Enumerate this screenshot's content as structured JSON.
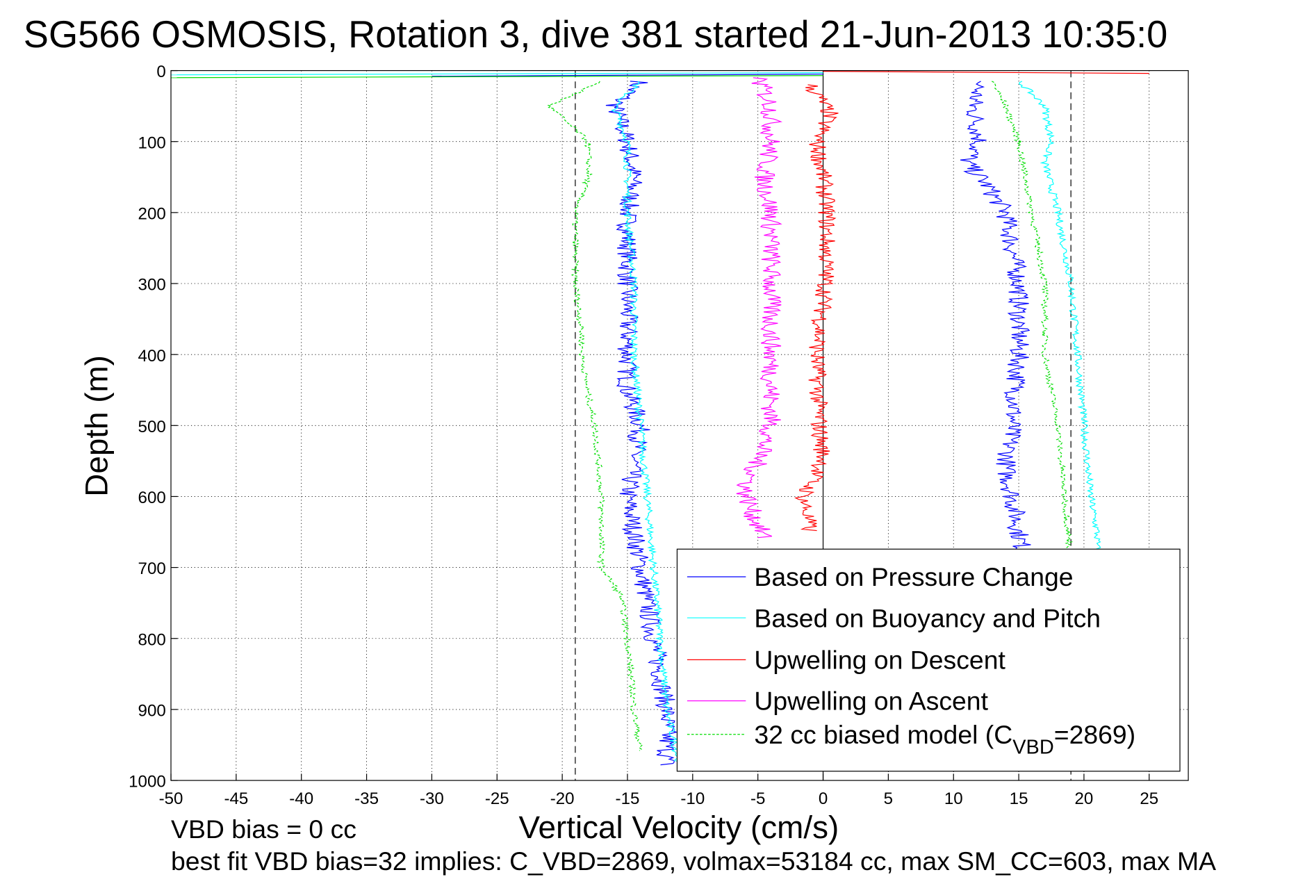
{
  "chart_data": {
    "type": "line",
    "title": "SG566 OSMOSIS, Rotation 3, dive 381 started 21-Jun-2013 10:35:0",
    "xlabel": "Vertical Velocity (cm/s)",
    "ylabel": "Depth (m)",
    "xlim": [
      -50,
      28
    ],
    "ylim": [
      0,
      1000
    ],
    "y_reversed": true,
    "grid": true,
    "xticks": [
      -50,
      -45,
      -40,
      -35,
      -30,
      -25,
      -20,
      -15,
      -10,
      -5,
      0,
      5,
      10,
      15,
      20,
      25
    ],
    "yticks": [
      0,
      100,
      200,
      300,
      400,
      500,
      600,
      700,
      800,
      900,
      1000
    ],
    "reference_lines": [
      {
        "x": -19,
        "style": "dashed",
        "color": "#000000"
      },
      {
        "x": 19,
        "style": "dashed",
        "color": "#000000"
      },
      {
        "x": 0,
        "style": "solid",
        "color": "#000000"
      }
    ],
    "legend": {
      "placement": "bottom-right"
    },
    "series": [
      {
        "name": "Based on Pressure Change",
        "legend_label": "Based on Pressure Change",
        "color": "#0000ff",
        "style": "solid",
        "noise": 0.8,
        "branches": [
          [
            [
              15,
              -14
            ],
            [
              50,
              -16
            ],
            [
              100,
              -15
            ],
            [
              150,
              -14.5
            ],
            [
              200,
              -15
            ],
            [
              250,
              -15
            ],
            [
              300,
              -15
            ],
            [
              400,
              -15
            ],
            [
              450,
              -15
            ],
            [
              500,
              -14
            ],
            [
              600,
              -15
            ],
            [
              650,
              -14.5
            ],
            [
              700,
              -14
            ],
            [
              800,
              -13
            ],
            [
              900,
              -12
            ],
            [
              980,
              -12
            ]
          ],
          [
            [
              15,
              12
            ],
            [
              50,
              11.5
            ],
            [
              100,
              12
            ],
            [
              130,
              11
            ],
            [
              160,
              12.5
            ],
            [
              200,
              14
            ],
            [
              300,
              15
            ],
            [
              400,
              15
            ],
            [
              500,
              14.5
            ],
            [
              560,
              14
            ],
            [
              600,
              14.5
            ],
            [
              650,
              15
            ],
            [
              690,
              15.5
            ]
          ]
        ]
      },
      {
        "name": "Based on Buoyancy and Pitch",
        "legend_label": "Based on Buoyancy and Pitch",
        "color": "#00ffff",
        "style": "solid",
        "noise": 0.3,
        "branches": [
          [
            [
              15,
              -14
            ],
            [
              50,
              -16
            ],
            [
              100,
              -15
            ],
            [
              200,
              -15
            ],
            [
              300,
              -14.5
            ],
            [
              400,
              -14.5
            ],
            [
              500,
              -14
            ],
            [
              600,
              -13.5
            ],
            [
              700,
              -13
            ],
            [
              800,
              -12.5
            ],
            [
              900,
              -12
            ],
            [
              980,
              -11
            ]
          ],
          [
            [
              15,
              15
            ],
            [
              50,
              17
            ],
            [
              100,
              17.5
            ],
            [
              130,
              17
            ],
            [
              200,
              18
            ],
            [
              300,
              19
            ],
            [
              400,
              19.5
            ],
            [
              500,
              20
            ],
            [
              600,
              20.5
            ],
            [
              650,
              21
            ],
            [
              690,
              21
            ]
          ]
        ]
      },
      {
        "name": "Upwelling on Descent",
        "legend_label": "Upwelling on Descent",
        "color": "#ff0000",
        "style": "solid",
        "noise": 0.7,
        "branches": [
          [
            [
              20,
              -1
            ],
            [
              60,
              0.5
            ],
            [
              100,
              -0.5
            ],
            [
              150,
              0
            ],
            [
              200,
              0.3
            ],
            [
              300,
              0.2
            ],
            [
              400,
              -0.5
            ],
            [
              500,
              -0.3
            ],
            [
              550,
              0
            ],
            [
              600,
              -1.5
            ],
            [
              650,
              -1
            ]
          ]
        ]
      },
      {
        "name": "Upwelling on Ascent",
        "legend_label": "Upwelling on Ascent",
        "color": "#ff00ff",
        "style": "solid",
        "noise": 0.8,
        "branches": [
          [
            [
              10,
              -5
            ],
            [
              50,
              -4
            ],
            [
              100,
              -4
            ],
            [
              150,
              -4.5
            ],
            [
              200,
              -4
            ],
            [
              300,
              -4
            ],
            [
              400,
              -4
            ],
            [
              500,
              -4
            ],
            [
              550,
              -5
            ],
            [
              590,
              -6
            ],
            [
              620,
              -5.5
            ],
            [
              660,
              -4.5
            ]
          ]
        ]
      },
      {
        "name": "32 cc biased model",
        "legend_label": "32 cc biased model (C",
        "legend_sub": "VBD",
        "legend_tail": "=2869)",
        "color": "#00dd00",
        "style": "dashed",
        "noise": 0.25,
        "branches": [
          [
            [
              15,
              -17
            ],
            [
              50,
              -21
            ],
            [
              100,
              -18
            ],
            [
              150,
              -18
            ],
            [
              200,
              -19
            ],
            [
              250,
              -19
            ],
            [
              300,
              -19
            ],
            [
              370,
              -18.5
            ],
            [
              400,
              -18.5
            ],
            [
              460,
              -18
            ],
            [
              500,
              -17.5
            ],
            [
              600,
              -17
            ],
            [
              650,
              -17
            ],
            [
              700,
              -17
            ],
            [
              740,
              -15.5
            ],
            [
              800,
              -15
            ],
            [
              900,
              -14.5
            ],
            [
              960,
              -14
            ]
          ],
          [
            [
              15,
              13
            ],
            [
              50,
              14
            ],
            [
              100,
              15
            ],
            [
              200,
              16
            ],
            [
              250,
              16.5
            ],
            [
              300,
              17
            ],
            [
              400,
              17
            ],
            [
              450,
              17.5
            ],
            [
              500,
              18
            ],
            [
              600,
              18.5
            ],
            [
              690,
              19
            ]
          ]
        ]
      }
    ],
    "annotations": {
      "vbd_bias": "VBD bias = 0 cc",
      "best_fit": "best fit VBD bias=32 implies: C_VBD=2869, volmax=53184 cc, max SM_CC=603, max MA"
    }
  }
}
